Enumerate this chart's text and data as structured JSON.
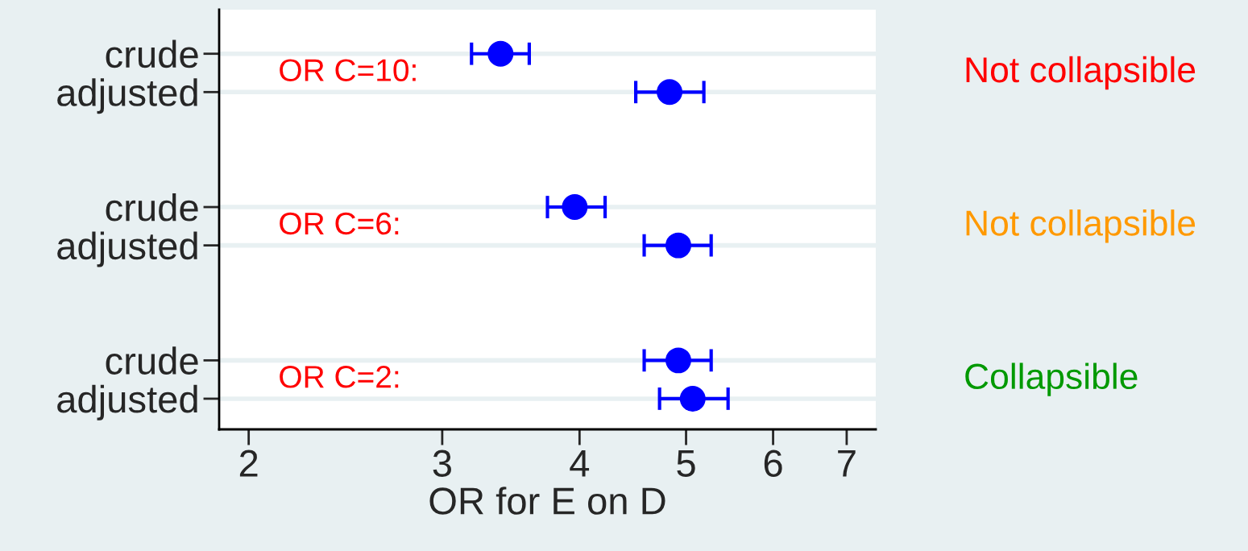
{
  "chart_data": {
    "type": "scatter",
    "orientation": "horizontal",
    "xlabel": "OR for E on D",
    "categories": [
      "crude",
      "adjusted",
      null,
      null,
      "crude",
      "adjusted",
      null,
      null,
      "crude",
      "adjusted"
    ],
    "series": [
      {
        "color": "#0000ff",
        "values": [
          3.39,
          4.83,
          null,
          null,
          3.96,
          4.92,
          null,
          null,
          4.92,
          5.07
        ],
        "errors": [
          [
            3.19,
            3.6
          ],
          [
            4.5,
            5.19
          ],
          null,
          null,
          [
            3.74,
            4.22
          ],
          [
            4.58,
            5.27
          ],
          null,
          null,
          [
            4.58,
            5.27
          ],
          [
            4.73,
            5.46
          ]
        ]
      }
    ],
    "log": "x",
    "xlim": [
      1.88,
      7.44
    ],
    "xticks": [
      2,
      3,
      4,
      5,
      6,
      7
    ],
    "grid": "y",
    "marker": "circle",
    "legend": false,
    "annotations": [
      "OR C=10:",
      "OR C=6:",
      "OR C=2:",
      "Not collapsible",
      "Not collapsible",
      "Collapsible"
    ]
  }
}
